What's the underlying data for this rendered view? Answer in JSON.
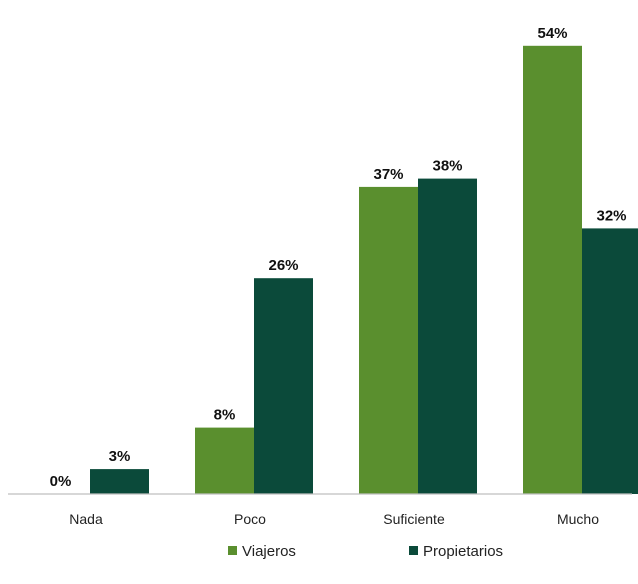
{
  "chart_data": {
    "type": "bar",
    "categories": [
      "Nada",
      "Poco",
      "Suficiente",
      "Mucho"
    ],
    "series": [
      {
        "name": "Viajeros",
        "values": [
          0,
          8,
          37,
          54
        ],
        "labels": [
          "0%",
          "8%",
          "37%",
          "54%"
        ],
        "color": "#5a8f2e"
      },
      {
        "name": "Propietarios",
        "values": [
          3,
          26,
          38,
          32
        ],
        "labels": [
          "3%",
          "26%",
          "38%",
          "32%"
        ],
        "color": "#0b4a3a"
      }
    ],
    "ylim": [
      0,
      60
    ],
    "unit": "%",
    "grid": false,
    "legend_position": "bottom-center",
    "axis_color": "#bfbfbf"
  }
}
